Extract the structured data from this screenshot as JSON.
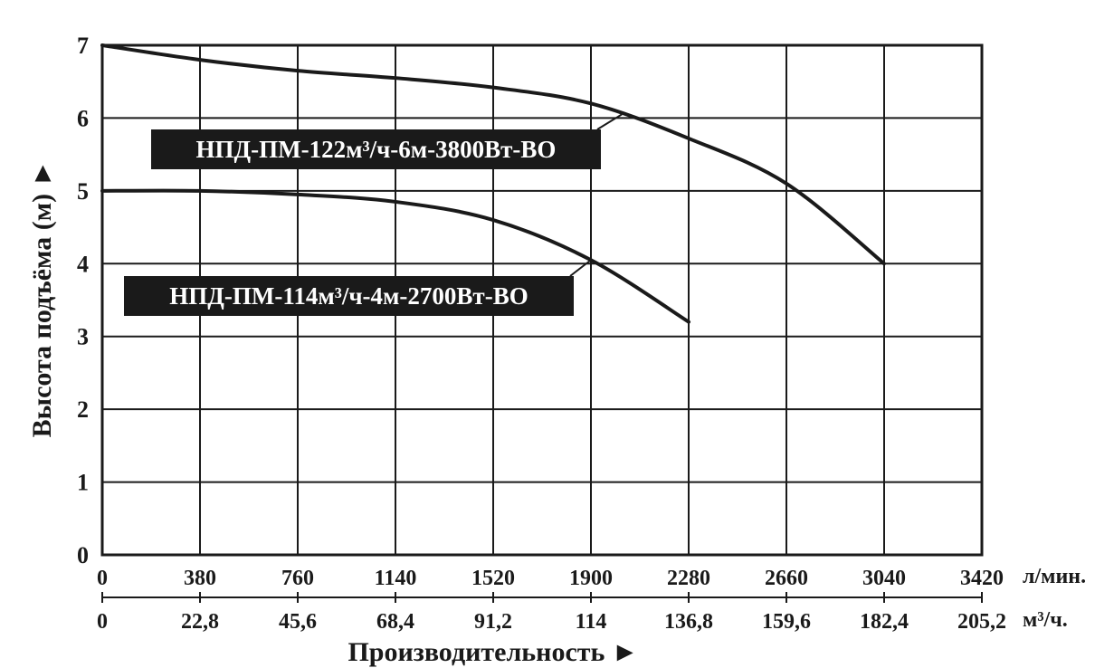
{
  "chart_data": {
    "type": "line",
    "title": "",
    "xlabel": "Производительность ►",
    "ylabel": "Высота подъёма (м) ►",
    "xlim": [
      0,
      3420
    ],
    "ylim": [
      0,
      7
    ],
    "grid": true,
    "x_ticks": [
      "0",
      "380",
      "760",
      "1140",
      "1520",
      "1900",
      "2280",
      "2660",
      "3040",
      "3420"
    ],
    "x_unit": "л/мин.",
    "x2_ticks": [
      "0",
      "22,8",
      "45,6",
      "68,4",
      "91,2",
      "114",
      "136,8",
      "159,6",
      "182,4",
      "205,2"
    ],
    "x2_unit": "м³/ч.",
    "y_ticks": [
      "0",
      "1",
      "2",
      "3",
      "4",
      "5",
      "6",
      "7"
    ],
    "series": [
      {
        "name": "НПД-ПМ-122м³/ч-6м-3800Вт-ВО",
        "color": "#1a1a1a",
        "points": [
          [
            0,
            7.0
          ],
          [
            380,
            6.8
          ],
          [
            760,
            6.65
          ],
          [
            1140,
            6.55
          ],
          [
            1520,
            6.42
          ],
          [
            1900,
            6.2
          ],
          [
            2280,
            5.72
          ],
          [
            2660,
            5.1
          ],
          [
            3040,
            4.0
          ]
        ]
      },
      {
        "name": "НПД-ПМ-114м³/ч-4м-2700Вт-ВО",
        "color": "#1a1a1a",
        "points": [
          [
            0,
            5.0
          ],
          [
            380,
            5.0
          ],
          [
            760,
            4.95
          ],
          [
            1140,
            4.85
          ],
          [
            1520,
            4.6
          ],
          [
            1900,
            4.05
          ],
          [
            2280,
            3.2
          ]
        ]
      }
    ]
  }
}
